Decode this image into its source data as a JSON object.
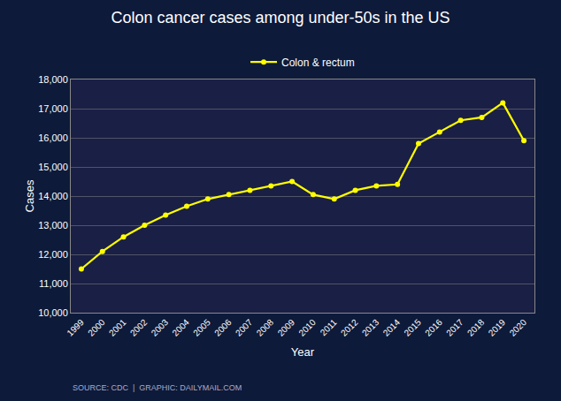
{
  "chart_data": {
    "type": "line",
    "title": "Colon cancer cases among under-50s in the US",
    "xlabel": "Year",
    "ylabel": "Cases",
    "x": [
      1999,
      2000,
      2001,
      2002,
      2003,
      2004,
      2005,
      2006,
      2007,
      2008,
      2009,
      2010,
      2011,
      2012,
      2013,
      2014,
      2015,
      2016,
      2017,
      2018,
      2019,
      2020
    ],
    "series": [
      {
        "name": "Colon & rectum",
        "color": "#FFFF00",
        "values": [
          11500,
          12100,
          12600,
          13000,
          13350,
          13650,
          13900,
          14050,
          14200,
          14350,
          14500,
          14050,
          13900,
          14200,
          14350,
          14400,
          15800,
          16200,
          16600,
          16700,
          17200,
          15900
        ]
      }
    ],
    "xlim": [
      1998.5,
      2020.5
    ],
    "xticks": [
      1999,
      2000,
      2001,
      2002,
      2003,
      2004,
      2005,
      2006,
      2007,
      2008,
      2009,
      2010,
      2011,
      2012,
      2013,
      2014,
      2015,
      2016,
      2017,
      2018,
      2019,
      2020
    ],
    "ylim": [
      10000,
      18000
    ],
    "yticks": [
      {
        "value": 10000,
        "label": "10,000"
      },
      {
        "value": 11000,
        "label": "11,000"
      },
      {
        "value": 12000,
        "label": "12,000"
      },
      {
        "value": 13000,
        "label": "13,000"
      },
      {
        "value": 14000,
        "label": "14,000"
      },
      {
        "value": 15000,
        "label": "15,000"
      },
      {
        "value": 16000,
        "label": "16,000"
      },
      {
        "value": 17000,
        "label": "17,000"
      },
      {
        "value": 18000,
        "label": "18,000"
      }
    ],
    "grid": "y",
    "legend": "top",
    "marker": "circle",
    "annotations": [
      "SOURCE: CDC  |  GRAPHIC: DAILYMAIL.COM"
    ]
  }
}
